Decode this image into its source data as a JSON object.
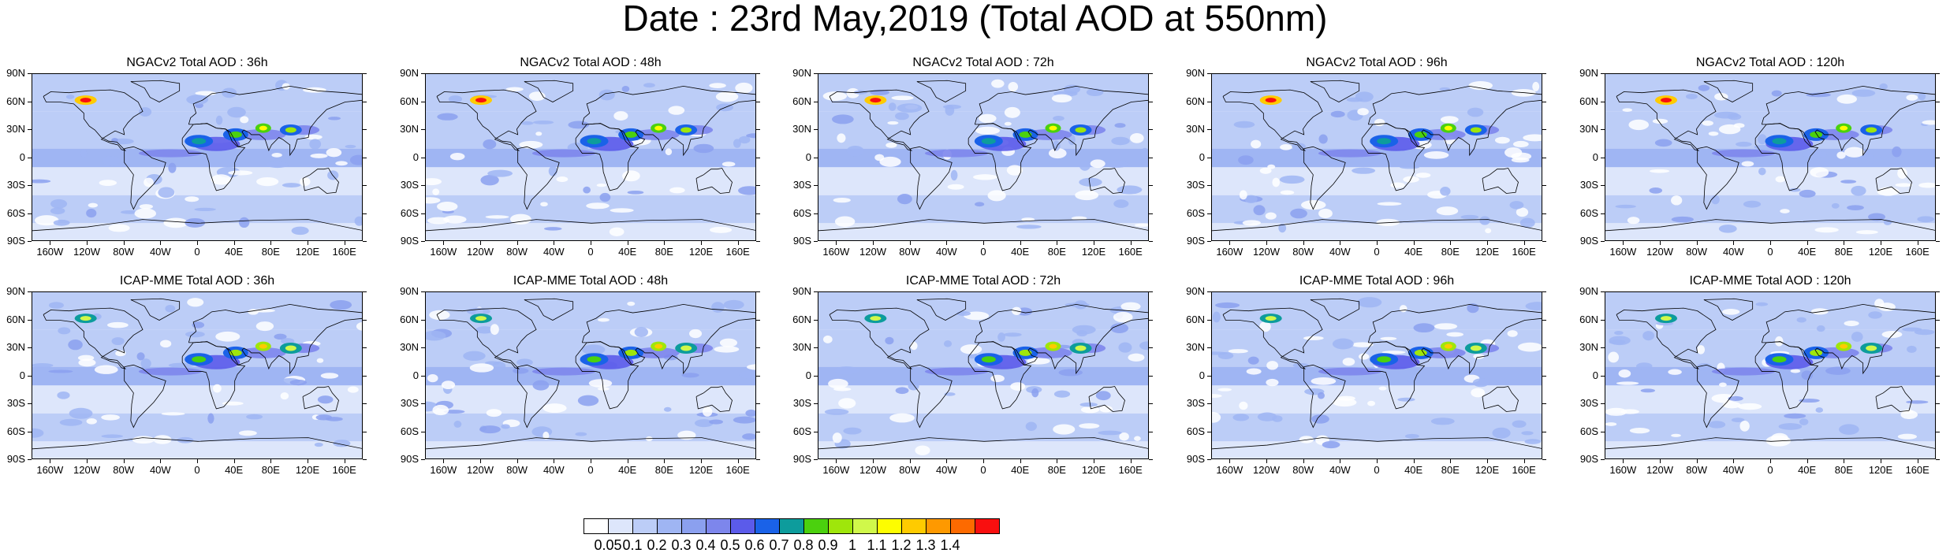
{
  "title": "Date : 23rd May,2019 (Total AOD at 550nm)",
  "lat_labels": [
    "90N",
    "60N",
    "30N",
    "0",
    "30S",
    "60S",
    "90S"
  ],
  "lon_labels": [
    "160W",
    "120W",
    "80W",
    "40W",
    "0",
    "40E",
    "80E",
    "120E",
    "160E"
  ],
  "panels": [
    {
      "title": "NGACv2 Total AOD : 36h",
      "row": 0,
      "col": 0
    },
    {
      "title": "NGACv2 Total AOD : 48h",
      "row": 0,
      "col": 1
    },
    {
      "title": "NGACv2 Total AOD : 72h",
      "row": 0,
      "col": 2
    },
    {
      "title": "NGACv2 Total AOD : 96h",
      "row": 0,
      "col": 3
    },
    {
      "title": "NGACv2 Total AOD : 120h",
      "row": 0,
      "col": 4
    },
    {
      "title": "ICAP-MME Total AOD : 36h",
      "row": 1,
      "col": 0
    },
    {
      "title": "ICAP-MME Total AOD : 48h",
      "row": 1,
      "col": 1
    },
    {
      "title": "ICAP-MME Total AOD : 72h",
      "row": 1,
      "col": 2
    },
    {
      "title": "ICAP-MME Total AOD : 96h",
      "row": 1,
      "col": 3
    },
    {
      "title": "ICAP-MME Total AOD : 120h",
      "row": 1,
      "col": 4
    }
  ],
  "colorbar": {
    "labels": [
      "0.05",
      "0.1",
      "0.2",
      "0.3",
      "0.4",
      "0.5",
      "0.6",
      "0.7",
      "0.8",
      "0.9",
      "1",
      "1.1",
      "1.2",
      "1.3",
      "1.4"
    ],
    "colors": [
      "#ffffff",
      "#dde6fb",
      "#bccdf7",
      "#9fb5f3",
      "#8ba0ef",
      "#7d86ec",
      "#5b5bea",
      "#1a62e8",
      "#0d9c9c",
      "#4bd10e",
      "#9fe60b",
      "#d0f84a",
      "#fdfd00",
      "#fecb00",
      "#fe9900",
      "#fd6a00",
      "#f90f0f"
    ]
  },
  "hotspots": [
    {
      "lon": -118,
      "lat": 62,
      "level": 16,
      "rx": 14,
      "ry": 6
    },
    {
      "lon": 5,
      "lat": 18,
      "level": 9,
      "rx": 18,
      "ry": 8
    },
    {
      "lon": 45,
      "lat": 25,
      "level": 10,
      "rx": 16,
      "ry": 8
    },
    {
      "lon": 75,
      "lat": 32,
      "level": 13,
      "rx": 10,
      "ry": 6
    },
    {
      "lon": 105,
      "lat": 30,
      "level": 11,
      "rx": 14,
      "ry": 7
    }
  ]
}
